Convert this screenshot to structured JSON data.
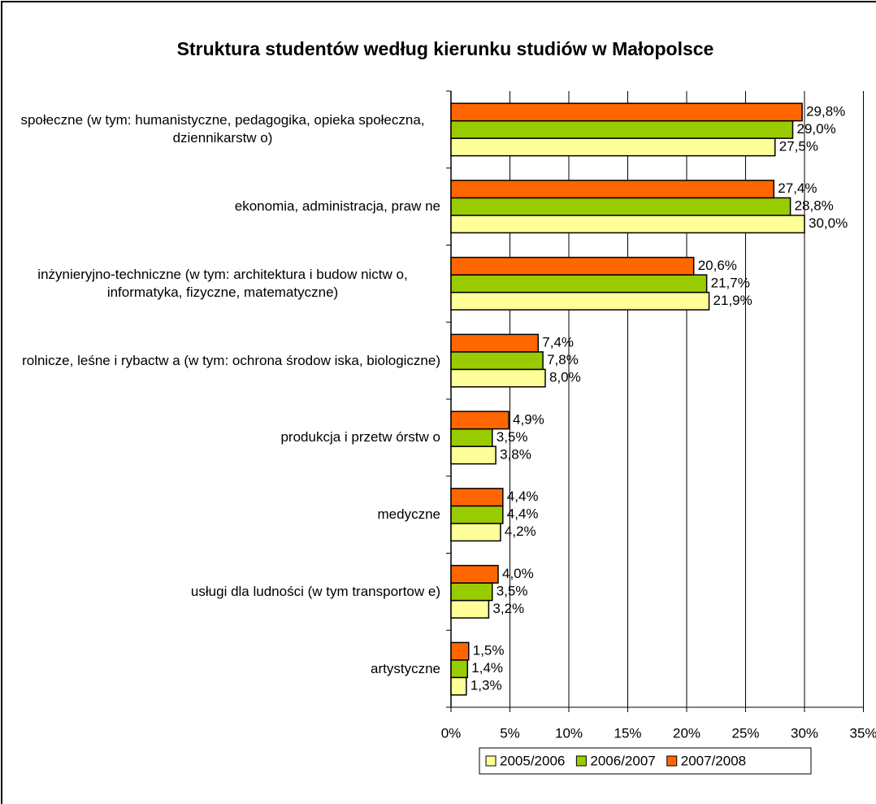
{
  "chart_data": {
    "type": "barh",
    "title": "Struktura studentów według kierunku studiów w Małopolsce",
    "categories": [
      "społeczne (w  tym: humanistyczne, pedagogika, opieka społeczna, dziennikarstw o)",
      "ekonomia, administracja, praw ne",
      "inżynieryjno-techniczne (w  tym: architektura i budow nictw o, informatyka, fizyczne, matematyczne)",
      "rolnicze, leśne i rybactw a (w  tym: ochrona środow iska, biologiczne)",
      "produkcja i przetw órstw o",
      "medyczne",
      "usługi dla ludności (w  tym transportow e)",
      "artystyczne"
    ],
    "series": [
      {
        "name": "2005/2006",
        "color": "#ffff99",
        "values": [
          27.5,
          30.0,
          21.9,
          8.0,
          3.8,
          4.2,
          3.2,
          1.3
        ],
        "value_labels": [
          "27,5%",
          "30,0%",
          "21,9%",
          "8,0%",
          "3,8%",
          "4,2%",
          "3,2%",
          "1,3%"
        ]
      },
      {
        "name": "2006/2007",
        "color": "#99cc00",
        "values": [
          29.0,
          28.8,
          21.7,
          7.8,
          3.5,
          4.4,
          3.5,
          1.4
        ],
        "value_labels": [
          "29,0%",
          "28,8%",
          "21,7%",
          "7,8%",
          "3,5%",
          "4,4%",
          "3,5%",
          "1,4%"
        ]
      },
      {
        "name": "2007/2008",
        "color": "#ff6600",
        "values": [
          29.8,
          27.4,
          20.6,
          7.4,
          4.9,
          4.4,
          4.0,
          1.5
        ],
        "value_labels": [
          "29,8%",
          "27,4%",
          "20,6%",
          "7,4%",
          "4,9%",
          "4,4%",
          "4,0%",
          "1,5%"
        ]
      }
    ],
    "xlim": [
      0,
      35
    ],
    "xticks": [
      {
        "value": 0,
        "label": "0%"
      },
      {
        "value": 5,
        "label": "5%"
      },
      {
        "value": 10,
        "label": "10%"
      },
      {
        "value": 15,
        "label": "15%"
      },
      {
        "value": 20,
        "label": "20%"
      },
      {
        "value": 25,
        "label": "25%"
      },
      {
        "value": 30,
        "label": "30%"
      },
      {
        "value": 35,
        "label": "35%"
      }
    ],
    "grid": true,
    "legend": "bottom"
  }
}
